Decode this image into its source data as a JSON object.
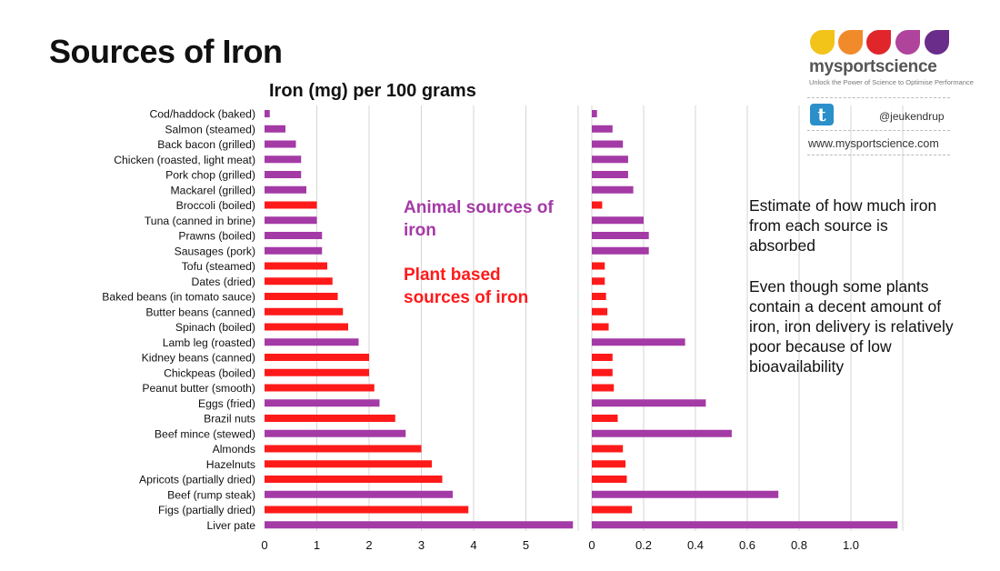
{
  "header": {
    "title": "Sources of Iron"
  },
  "legend": {
    "animal": "Animal sources of iron",
    "plant": "Plant based sources of iron"
  },
  "notes": {
    "absorbed": "Estimate of how much iron from each source is absorbed",
    "bioavailability": "Even though some plants contain a decent amount of iron, iron delivery is relatively poor because of low bioavailability"
  },
  "branding": {
    "name": "mysportscience",
    "tagline": "Unlock the Power of Science to Optimise Performance",
    "twitter_icon": "twitter-icon",
    "twitter_handle": "@jeukendrup",
    "website": "www.mysportscience.com",
    "drop_colors": [
      "#f2c319",
      "#f18a2a",
      "#e0262b",
      "#b0449c",
      "#6a2d8a"
    ]
  },
  "colors": {
    "animal": "#a43aa6",
    "plant": "#ff1a1a"
  },
  "chart_data": [
    {
      "type": "bar",
      "orientation": "horizontal",
      "title": "Iron (mg) per 100 grams",
      "xlabel": "",
      "ylabel": "",
      "xlim": [
        0,
        6
      ],
      "xticks": [
        "0",
        "1",
        "2",
        "3",
        "4",
        "5"
      ],
      "grid": true,
      "categories": [
        "Cod/haddock (baked)",
        "Salmon (steamed)",
        "Back bacon (grilled)",
        "Chicken (roasted, light meat)",
        "Pork chop (grilled)",
        "Mackarel (grilled)",
        "Broccoli (boiled)",
        "Tuna (canned in brine)",
        "Prawns (boiled)",
        "Sausages (pork)",
        "Tofu (steamed)",
        "Dates (dried)",
        "Baked beans (in tomato sauce)",
        "Butter beans (canned)",
        "Spinach (boiled)",
        "Lamb leg (roasted)",
        "Kidney beans (canned)",
        "Chickpeas (boiled)",
        "Peanut butter (smooth)",
        "Eggs (fried)",
        "Brazil nuts",
        "Beef mince (stewed)",
        "Almonds",
        "Hazelnuts",
        "Apricots (partially dried)",
        "Beef (rump steak)",
        "Figs (partially dried)",
        "Liver pate"
      ],
      "source_type": [
        "animal",
        "animal",
        "animal",
        "animal",
        "animal",
        "animal",
        "plant",
        "animal",
        "animal",
        "animal",
        "plant",
        "plant",
        "plant",
        "plant",
        "plant",
        "animal",
        "plant",
        "plant",
        "plant",
        "animal",
        "plant",
        "animal",
        "plant",
        "plant",
        "plant",
        "animal",
        "plant",
        "animal"
      ],
      "values": [
        0.1,
        0.4,
        0.6,
        0.7,
        0.7,
        0.8,
        1.0,
        1.0,
        1.1,
        1.1,
        1.2,
        1.3,
        1.4,
        1.5,
        1.6,
        1.8,
        2.0,
        2.0,
        2.1,
        2.2,
        2.5,
        2.7,
        3.0,
        3.2,
        3.4,
        3.6,
        3.9,
        5.9
      ]
    },
    {
      "type": "bar",
      "orientation": "horizontal",
      "title": "",
      "xlabel": "",
      "ylabel": "",
      "xlim": [
        0,
        1.2
      ],
      "xticks": [
        "0",
        "0.2",
        "0.4",
        "0.6",
        "0.8",
        "1.0"
      ],
      "grid": true,
      "values": [
        0.02,
        0.08,
        0.12,
        0.14,
        0.14,
        0.16,
        0.04,
        0.2,
        0.22,
        0.22,
        0.05,
        0.05,
        0.055,
        0.06,
        0.065,
        0.36,
        0.08,
        0.08,
        0.085,
        0.44,
        0.1,
        0.54,
        0.12,
        0.13,
        0.135,
        0.72,
        0.155,
        1.18
      ]
    }
  ]
}
